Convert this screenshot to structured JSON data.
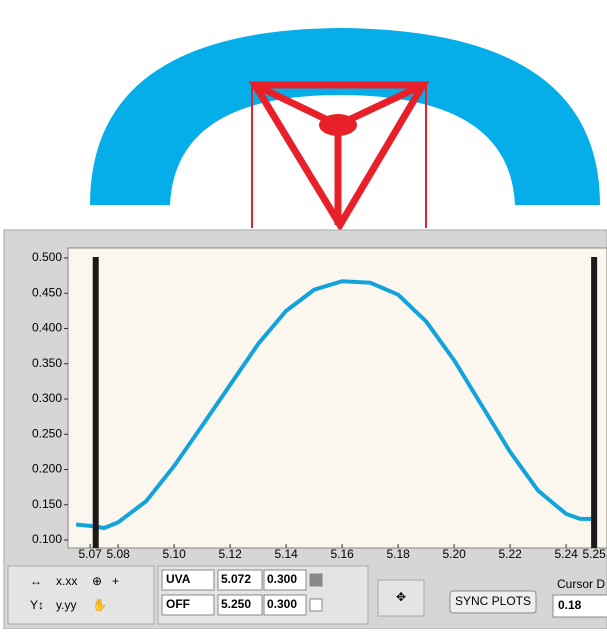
{
  "chart_data": {
    "type": "line",
    "x": [
      5.065,
      5.07,
      5.075,
      5.08,
      5.09,
      5.1,
      5.11,
      5.12,
      5.13,
      5.14,
      5.15,
      5.16,
      5.17,
      5.18,
      5.19,
      5.2,
      5.21,
      5.22,
      5.23,
      5.24,
      5.245,
      5.25
    ],
    "series": [
      {
        "color": "#12a3dc",
        "values": [
          0.122,
          0.12,
          0.117,
          0.125,
          0.155,
          0.205,
          0.262,
          0.32,
          0.378,
          0.425,
          0.455,
          0.467,
          0.465,
          0.448,
          0.41,
          0.355,
          0.29,
          0.225,
          0.17,
          0.137,
          0.13,
          0.13
        ]
      }
    ],
    "xlim": [
      5.0621,
      5.2546
    ],
    "ylim": [
      0.1,
      0.5
    ],
    "xticks": [
      5.07,
      5.08,
      {
        "value": 5.1,
        "label": "5.10"
      },
      5.12,
      5.14,
      5.16,
      5.18,
      {
        "value": 5.2,
        "label": "5.20"
      },
      5.22,
      5.24,
      5.25
    ],
    "yticks": [
      {
        "value": 0.1,
        "label": "0.100"
      },
      {
        "value": 0.15,
        "label": "0.150"
      },
      {
        "value": 0.2,
        "label": "0.200"
      },
      {
        "value": 0.25,
        "label": "0.250"
      },
      {
        "value": 0.3,
        "label": "0.300"
      },
      {
        "value": 0.35,
        "label": "0.350"
      },
      {
        "value": 0.4,
        "label": "0.400"
      },
      {
        "value": 0.45,
        "label": "0.450"
      },
      {
        "value": 0.5,
        "label": "0.500"
      }
    ]
  },
  "cursors": [
    {
      "name": "UVA",
      "x": {
        "value": 5.072,
        "label": "5.072"
      },
      "y": "0.300"
    },
    {
      "name": "OFF",
      "x": {
        "value": 5.25,
        "label": "5.250"
      },
      "y": "0.300"
    }
  ],
  "controls": {
    "sync": "SYNC PLOTS",
    "delta_label": "Cursor D",
    "delta_value": "0.18"
  }
}
